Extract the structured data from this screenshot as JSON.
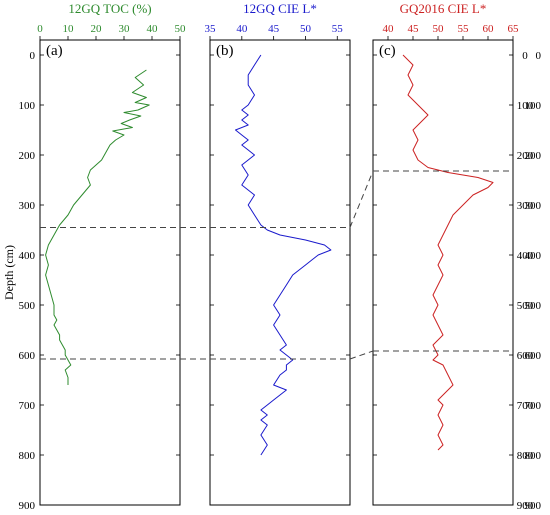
{
  "chart_data": [
    {
      "panel_label": "(a)",
      "type": "line",
      "title": "12GQ TOC (%)",
      "color": "#2e8b2e",
      "xlim": [
        0,
        50
      ],
      "xticks": [
        "0",
        "10",
        "20",
        "30",
        "40",
        "50"
      ],
      "ylabel": "Depth (cm)",
      "ylim": [
        900,
        -30
      ],
      "yticks": [
        "0",
        "100",
        "200",
        "300",
        "400",
        "500",
        "600",
        "700",
        "800",
        "900"
      ],
      "series": [
        {
          "x": [
            38,
            34,
            37,
            33,
            38,
            34,
            39,
            35,
            30,
            36,
            32,
            29,
            33,
            26,
            30,
            27,
            25,
            24,
            23,
            22,
            20,
            18,
            17,
            18,
            15,
            12,
            10,
            7,
            5,
            3,
            2,
            3,
            2,
            3,
            4,
            5,
            5,
            6,
            5,
            6,
            7,
            7,
            8,
            9,
            9,
            10,
            11,
            9,
            10,
            10
          ],
          "y": [
            30,
            45,
            60,
            75,
            85,
            95,
            100,
            110,
            115,
            122,
            130,
            137,
            145,
            152,
            160,
            170,
            180,
            190,
            200,
            210,
            220,
            230,
            245,
            260,
            280,
            300,
            320,
            340,
            360,
            380,
            400,
            420,
            440,
            460,
            480,
            500,
            520,
            530,
            540,
            550,
            560,
            570,
            580,
            590,
            600,
            610,
            620,
            630,
            645,
            660
          ]
        }
      ]
    },
    {
      "panel_label": "(b)",
      "type": "line",
      "title": "12GQ CIE L*",
      "color": "#1a1acc",
      "xlim": [
        35,
        57
      ],
      "xticks": [
        "35",
        "40",
        "45",
        "50",
        "55"
      ],
      "ylim": [
        900,
        -30
      ],
      "series": [
        {
          "x": [
            43,
            42,
            41,
            41,
            42,
            41,
            40,
            41,
            40,
            41,
            39,
            40,
            41,
            40,
            41,
            42,
            41,
            40,
            41,
            40,
            42,
            41,
            42,
            43,
            44,
            46,
            50,
            53,
            54,
            52,
            51,
            50,
            49,
            48,
            47,
            46,
            45,
            46,
            45,
            46,
            47,
            46,
            47,
            48,
            47,
            47,
            46,
            45,
            47,
            46,
            45,
            44,
            43,
            44,
            43,
            44,
            43,
            44,
            43
          ],
          "y": [
            0,
            20,
            40,
            60,
            80,
            100,
            110,
            120,
            130,
            140,
            150,
            160,
            170,
            180,
            190,
            200,
            210,
            220,
            240,
            260,
            280,
            300,
            320,
            340,
            350,
            360,
            370,
            380,
            390,
            400,
            410,
            420,
            430,
            440,
            460,
            480,
            500,
            520,
            540,
            560,
            580,
            590,
            600,
            610,
            620,
            630,
            640,
            660,
            670,
            680,
            690,
            700,
            710,
            720,
            730,
            740,
            760,
            780,
            800
          ]
        }
      ]
    },
    {
      "panel_label": "(c)",
      "type": "line",
      "title": "GQ2016 CIE L*",
      "color": "#cc2222",
      "xlim": [
        37,
        65
      ],
      "xticks": [
        "40",
        "45",
        "50",
        "55",
        "60",
        "65"
      ],
      "ylim": [
        900,
        -30
      ],
      "yticks": [
        "0",
        "100",
        "200",
        "300",
        "400",
        "500",
        "600",
        "700",
        "800",
        "900"
      ],
      "series": [
        {
          "x": [
            43,
            45,
            44,
            45,
            44,
            46,
            47,
            48,
            47,
            46,
            45,
            46,
            45,
            46,
            48,
            52,
            58,
            61,
            60,
            57,
            55,
            53,
            52,
            51,
            50,
            51,
            50,
            51,
            50,
            49,
            50,
            49,
            50,
            51,
            50,
            49,
            50,
            49,
            51,
            52,
            53,
            52,
            51,
            50,
            51,
            50,
            51,
            50,
            51,
            50
          ],
          "y": [
            0,
            20,
            40,
            60,
            80,
            100,
            110,
            120,
            130,
            140,
            150,
            170,
            190,
            210,
            225,
            235,
            245,
            255,
            265,
            280,
            300,
            320,
            340,
            360,
            380,
            400,
            420,
            440,
            460,
            480,
            500,
            520,
            540,
            560,
            570,
            580,
            600,
            610,
            620,
            640,
            660,
            670,
            680,
            690,
            700,
            720,
            740,
            760,
            780,
            790
          ]
        }
      ]
    }
  ],
  "correlation_lines": [
    {
      "depth_b": 345,
      "depth_c": 232
    },
    {
      "depth_b": 608,
      "depth_c": 592
    }
  ]
}
